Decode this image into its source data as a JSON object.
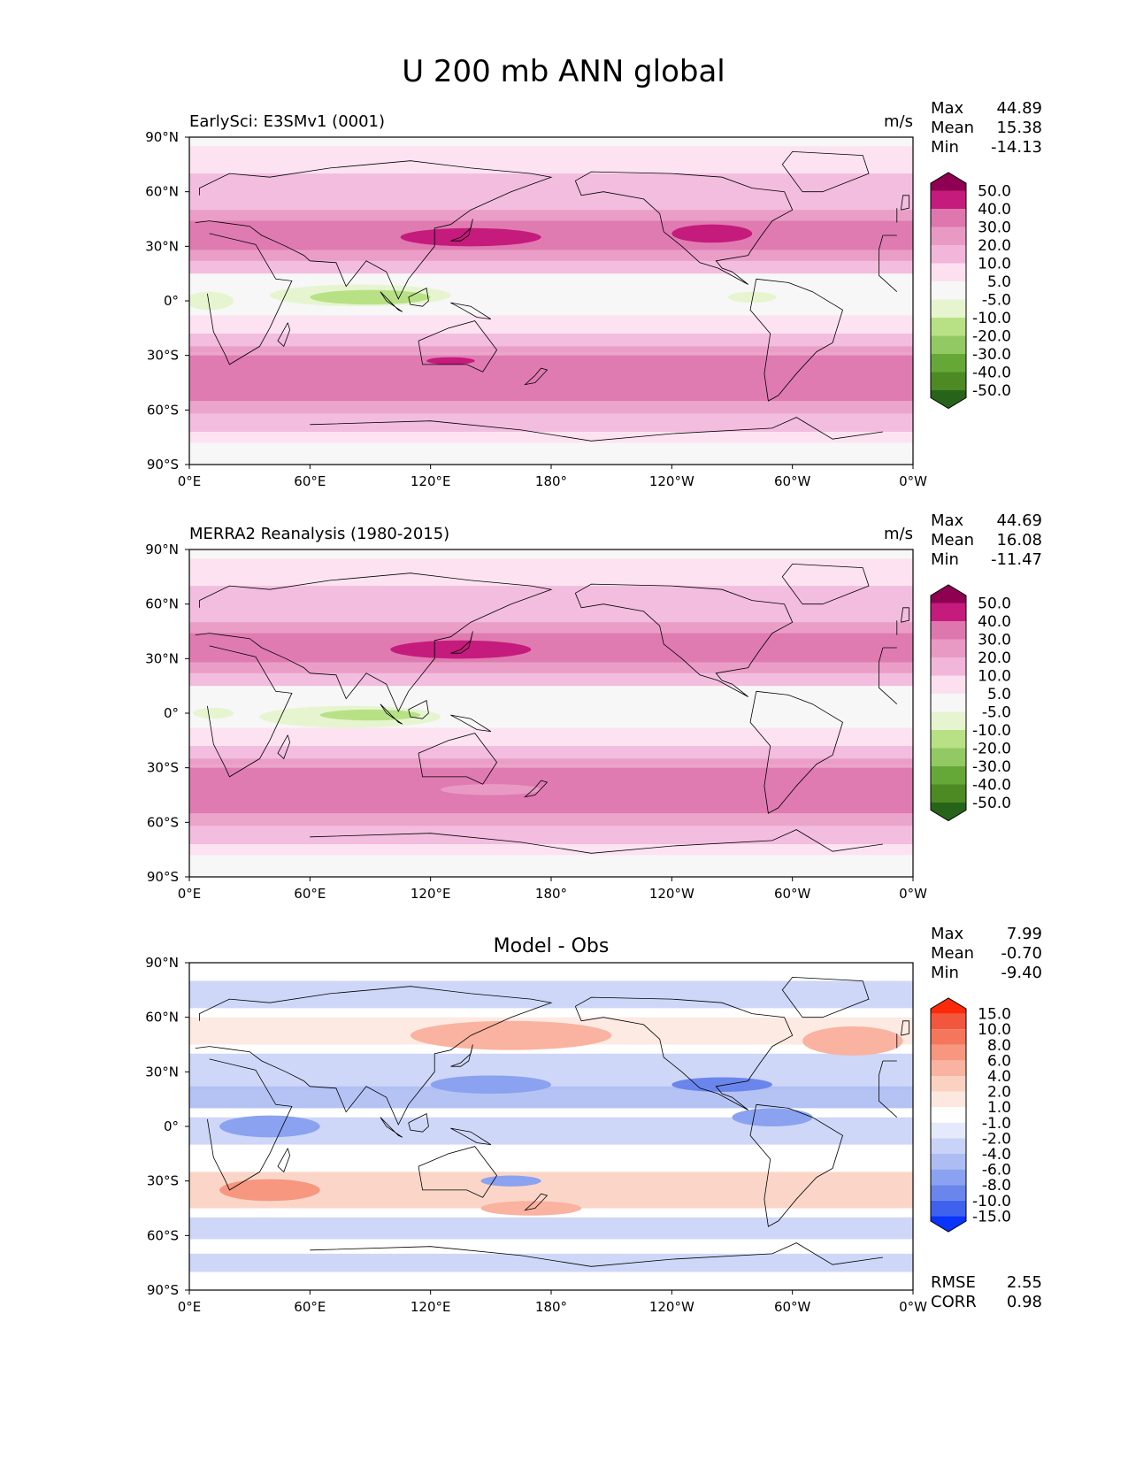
{
  "figure_title": "U 200 mb ANN global",
  "chart_data": [
    {
      "type": "contour-map",
      "title": "EarlySci: E3SMv1 (0001)",
      "units": "m/s",
      "stats": [
        {
          "label": "Max",
          "value": "44.89"
        },
        {
          "label": "Mean",
          "value": "15.38"
        },
        {
          "label": "Min",
          "value": "-14.13"
        }
      ],
      "xticks": [
        "0°E",
        "60°E",
        "120°E",
        "180°",
        "120°W",
        "60°W",
        "0°W"
      ],
      "yticks": [
        "90°N",
        "60°N",
        "30°N",
        "0°",
        "30°S",
        "60°S",
        "90°S"
      ],
      "xlim": [
        0,
        360
      ],
      "ylim": [
        -90,
        90
      ],
      "colorbar": {
        "labels": [
          "50.0",
          "40.0",
          "30.0",
          "20.0",
          "10.0",
          "5.0",
          "-5.0",
          "-10.0",
          "-20.0",
          "-30.0",
          "-40.0",
          "-50.0"
        ],
        "colors": [
          "#8e0152",
          "#c51b7d",
          "#de77ae",
          "#e99ac4",
          "#f1b6da",
          "#fde0ef",
          "#f7f7f7",
          "#e6f5d0",
          "#b8e186",
          "#93c962",
          "#66a838",
          "#4d8a24",
          "#276419"
        ]
      }
    },
    {
      "type": "contour-map",
      "title": "MERRA2 Reanalysis (1980-2015)",
      "units": "m/s",
      "stats": [
        {
          "label": "Max",
          "value": "44.69"
        },
        {
          "label": "Mean",
          "value": "16.08"
        },
        {
          "label": "Min",
          "value": "-11.47"
        }
      ],
      "xticks": [
        "0°E",
        "60°E",
        "120°E",
        "180°",
        "120°W",
        "60°W",
        "0°W"
      ],
      "yticks": [
        "90°N",
        "60°N",
        "30°N",
        "0°",
        "30°S",
        "60°S",
        "90°S"
      ],
      "xlim": [
        0,
        360
      ],
      "ylim": [
        -90,
        90
      ],
      "colorbar": {
        "labels": [
          "50.0",
          "40.0",
          "30.0",
          "20.0",
          "10.0",
          "5.0",
          "-5.0",
          "-10.0",
          "-20.0",
          "-30.0",
          "-40.0",
          "-50.0"
        ],
        "colors": [
          "#8e0152",
          "#c51b7d",
          "#de77ae",
          "#e99ac4",
          "#f1b6da",
          "#fde0ef",
          "#f7f7f7",
          "#e6f5d0",
          "#b8e186",
          "#93c962",
          "#66a838",
          "#4d8a24",
          "#276419"
        ]
      }
    },
    {
      "type": "contour-map",
      "title": "Model - Obs",
      "units": "",
      "stats": [
        {
          "label": "Max",
          "value": "7.99"
        },
        {
          "label": "Mean",
          "value": "-0.70"
        },
        {
          "label": "Min",
          "value": "-9.40"
        }
      ],
      "metrics": [
        {
          "label": "RMSE",
          "value": "2.55"
        },
        {
          "label": "CORR",
          "value": "0.98"
        }
      ],
      "xticks": [
        "0°E",
        "60°E",
        "120°E",
        "180°",
        "120°W",
        "60°W",
        "0°W"
      ],
      "yticks": [
        "90°N",
        "60°N",
        "30°N",
        "0°",
        "30°S",
        "60°S",
        "90°S"
      ],
      "xlim": [
        0,
        360
      ],
      "ylim": [
        -90,
        90
      ],
      "colorbar": {
        "labels": [
          "15.0",
          "10.0",
          "8.0",
          "6.0",
          "4.0",
          "2.0",
          "1.0",
          "-1.0",
          "-2.0",
          "-4.0",
          "-6.0",
          "-8.0",
          "-10.0",
          "-15.0"
        ],
        "colors": [
          "#fc2a0a",
          "#f2573e",
          "#f5765b",
          "#f7977f",
          "#f9b3a0",
          "#fbd1c2",
          "#fde8df",
          "#ffffff",
          "#e4e9fb",
          "#c9d3f7",
          "#adbdf3",
          "#8aa2ef",
          "#6a86ec",
          "#3e62ee",
          "#0a34fb"
        ]
      }
    }
  ]
}
